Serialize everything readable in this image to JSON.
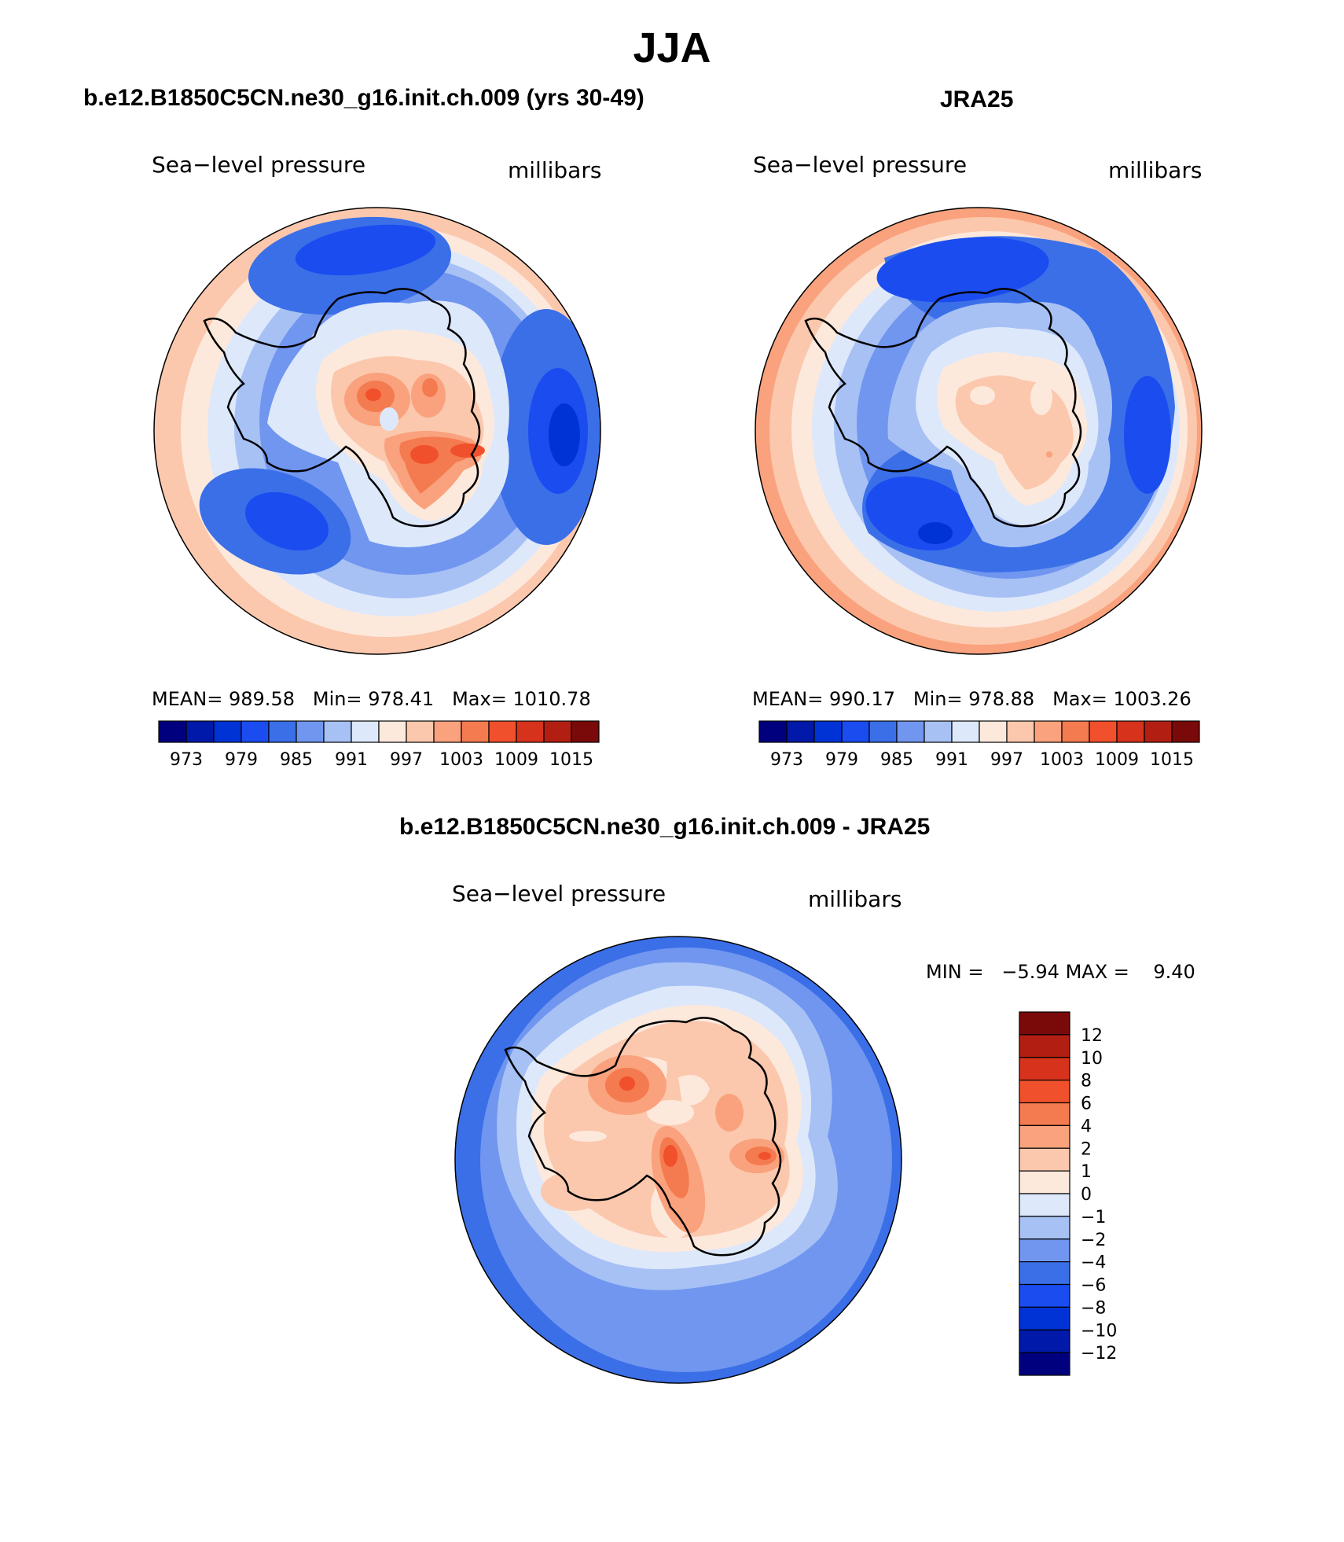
{
  "page": {
    "title": "JJA"
  },
  "panels": [
    {
      "case_title": "b.e12.B1850C5CN.ne30_g16.init.ch.009 (yrs 30-49)",
      "variable": "Sea−level pressure",
      "units": "millibars",
      "stats": {
        "mean_label": "MEAN=",
        "mean": "989.58",
        "min_label": "Min=",
        "min": "978.41",
        "max_label": "Max=",
        "max": "1010.78"
      },
      "colorbar": {
        "colors": [
          "#00007e",
          "#0019a8",
          "#0033d6",
          "#1a4cf0",
          "#3b6fe8",
          "#7196ef",
          "#a7c1f5",
          "#dde8fb",
          "#fde9dc",
          "#fbc8ad",
          "#f9a27d",
          "#f47a4f",
          "#f0502b",
          "#d6321c",
          "#b21f12",
          "#7a0a0a"
        ],
        "tick_labels": [
          "973",
          "979",
          "985",
          "991",
          "997",
          "1003",
          "1009",
          "1015"
        ]
      }
    },
    {
      "case_title": "JRA25",
      "variable": "Sea−level pressure",
      "units": "millibars",
      "stats": {
        "mean_label": "MEAN=",
        "mean": "990.17",
        "min_label": "Min=",
        "min": "978.88",
        "max_label": "Max=",
        "max": "1003.26"
      },
      "colorbar": {
        "colors": [
          "#00007e",
          "#0019a8",
          "#0033d6",
          "#1a4cf0",
          "#3b6fe8",
          "#7196ef",
          "#a7c1f5",
          "#dde8fb",
          "#fde9dc",
          "#fbc8ad",
          "#f9a27d",
          "#f47a4f",
          "#f0502b",
          "#d6321c",
          "#b21f12",
          "#7a0a0a"
        ],
        "tick_labels": [
          "973",
          "979",
          "985",
          "991",
          "997",
          "1003",
          "1009",
          "1015"
        ]
      }
    },
    {
      "case_title": "b.e12.B1850C5CN.ne30_g16.init.ch.009 - JRA25",
      "variable": "Sea−level pressure",
      "units": "millibars",
      "stats": {
        "min_label": "MIN =",
        "min": "−5.94",
        "max_label": "MAX =",
        "max": "9.40"
      },
      "colorbar": {
        "colors": [
          "#7a0a0a",
          "#b21f12",
          "#d6321c",
          "#f0502b",
          "#f47a4f",
          "#f9a27d",
          "#fbc8ad",
          "#fde9dc",
          "#dde8fb",
          "#a7c1f5",
          "#7196ef",
          "#3b6fe8",
          "#1a4cf0",
          "#0033d6",
          "#0019a8",
          "#00007e"
        ],
        "tick_labels": [
          "12",
          "10",
          "8",
          "6",
          "4",
          "2",
          "1",
          "0",
          "−1",
          "−2",
          "−4",
          "−6",
          "−8",
          "−10",
          "−12"
        ]
      }
    }
  ]
}
